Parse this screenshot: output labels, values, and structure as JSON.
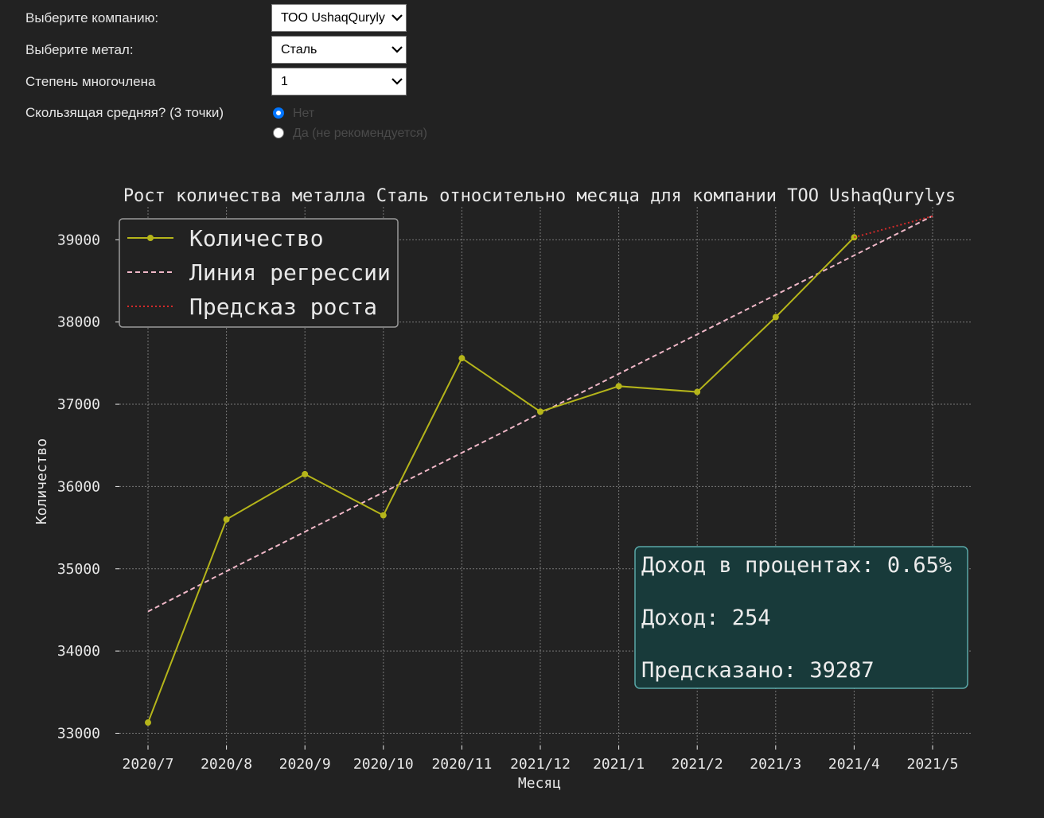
{
  "form": {
    "company_label": "Выберите компанию:",
    "company_value": "ТОО UshaqQuryly",
    "metal_label": "Выберите метал:",
    "metal_value": "Сталь",
    "degree_label": "Степень многочлена",
    "degree_value": "1",
    "ma_label": "Скользящая средняя? (3 точки)",
    "ma_options": [
      {
        "label": "Нет",
        "selected": true
      },
      {
        "label": "Да (не рекомендуется)",
        "selected": false
      }
    ]
  },
  "chart_data": {
    "type": "line",
    "title": "Рост количества металла Сталь относительно месяца для компании ТОО UshaqQurylys",
    "xlabel": "Месяц",
    "ylabel": "Количество",
    "categories": [
      "2020/7",
      "2020/8",
      "2020/9",
      "2020/10",
      "2020/11",
      "2021/12",
      "2021/1",
      "2021/2",
      "2021/3",
      "2021/4",
      "2021/5"
    ],
    "ylim": [
      32850,
      39400
    ],
    "yticks": [
      33000,
      34000,
      35000,
      36000,
      37000,
      38000,
      39000
    ],
    "grid": true,
    "legend_position": "top-left",
    "series": [
      {
        "name": "Количество",
        "style": "solid-marker",
        "color": "#b5b51a",
        "values": [
          33130,
          35600,
          36150,
          35650,
          37560,
          36910,
          37220,
          37150,
          38060,
          39030,
          null
        ]
      },
      {
        "name": "Линия регрессии",
        "style": "dashed",
        "color": "#f0b8c8",
        "values": [
          34480,
          34970,
          35450,
          35930,
          36410,
          36890,
          37370,
          37850,
          38330,
          38810,
          39290
        ]
      },
      {
        "name": "Предсказ роста",
        "style": "dotted",
        "color": "#d42a2a",
        "values": [
          null,
          null,
          null,
          null,
          null,
          null,
          null,
          null,
          null,
          39030,
          39287
        ]
      }
    ],
    "annotation": {
      "lines": [
        "Доход в процентах: 0.65%",
        "Доход: 254",
        "Предсказано: 39287"
      ],
      "position": "bottom-right",
      "background": "#183a3a",
      "border": "#5aa8a8"
    },
    "colors": {
      "background": "#222222",
      "text": "#e8e8e8",
      "grid": "#8c8c8c"
    }
  }
}
